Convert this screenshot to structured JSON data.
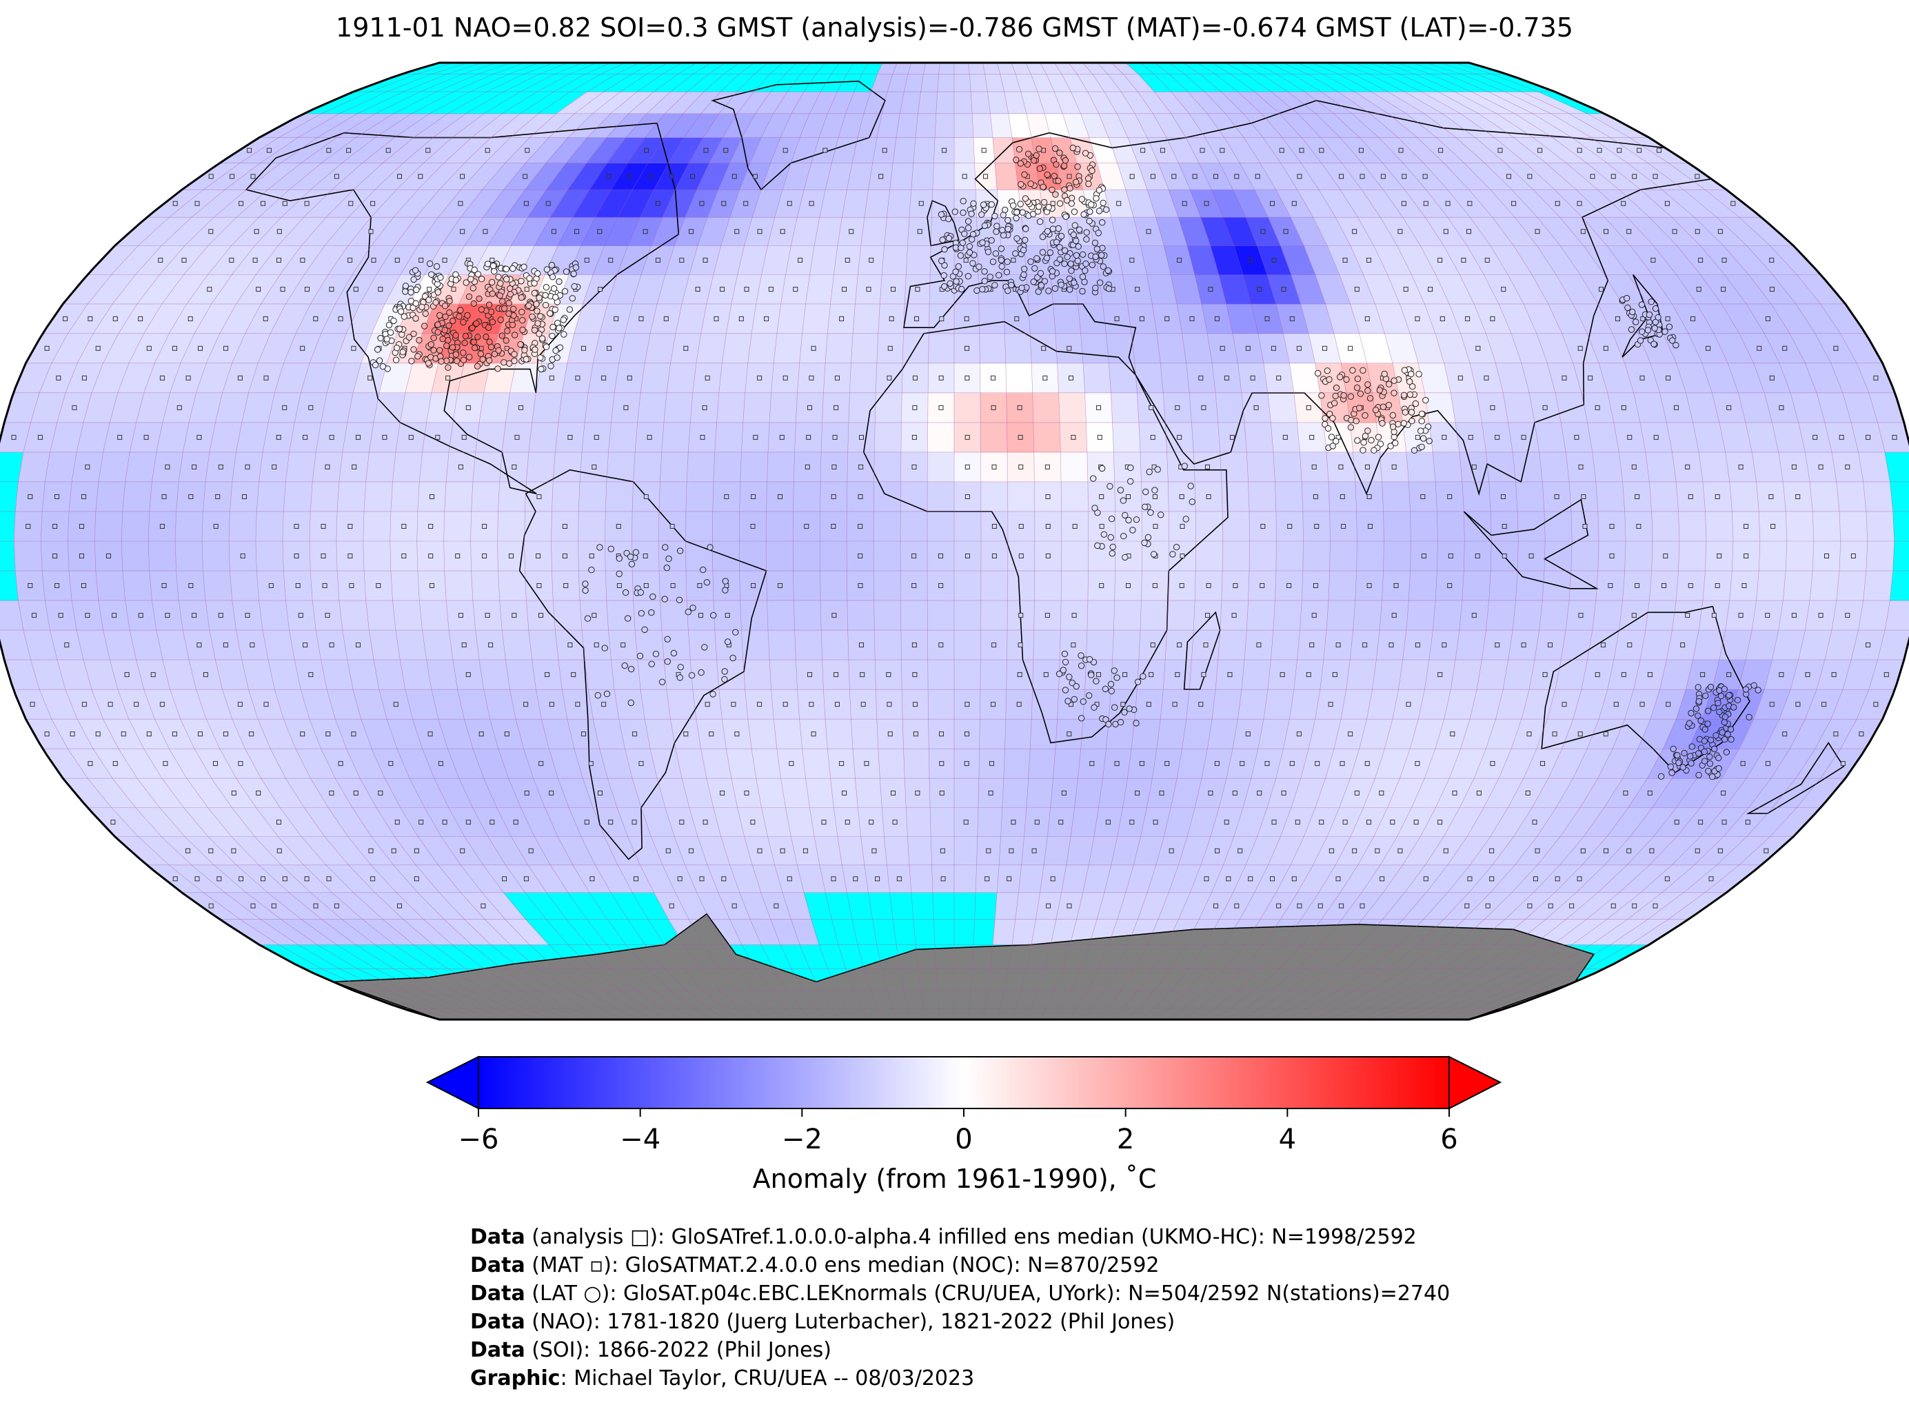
{
  "title": "1911-01 NAO=0.82 SOI=0.3 GMST (analysis)=-0.786 GMST (MAT)=-0.674 GMST (LAT)=-0.735",
  "map": {
    "projection": "Robinson",
    "colors": {
      "no_data": "#00ffff",
      "land_ice": "#808080",
      "coastline": "#000000",
      "gridline": "#a05a9e"
    },
    "anomaly_regions": [
      {
        "name": "North America / Greenland cold",
        "anomaly": -5.5
      },
      {
        "name": "Central USA warm",
        "anomaly": 4.5
      },
      {
        "name": "Scandinavia warm",
        "anomaly": 3.0
      },
      {
        "name": "Central Asia cold",
        "anomaly": -5.5
      },
      {
        "name": "Sahara warm",
        "anomaly": 2.0
      },
      {
        "name": "India warm",
        "anomaly": 2.0
      },
      {
        "name": "Eastern Australia cold",
        "anomaly": -2.5
      }
    ]
  },
  "colorbar": {
    "min": -6,
    "max": 6,
    "low_color": "#0000ff",
    "mid_color": "#ffffff",
    "high_color": "#ff0000",
    "ticks": [
      "−6",
      "−4",
      "−2",
      "0",
      "2",
      "4",
      "6"
    ],
    "label": "Anomaly (from 1961-1990), ˚C"
  },
  "credits": [
    {
      "key": "Data",
      "text": " (analysis □): GloSATref.1.0.0.0-alpha.4 infilled ens median (UKMO-HC): N=1998/2592"
    },
    {
      "key": "Data",
      "text": " (MAT ▫): GloSATMAT.2.4.0.0 ens median (NOC): N=870/2592"
    },
    {
      "key": "Data",
      "text": " (LAT ○): GloSAT.p04c.EBC.LEKnormals (CRU/UEA, UYork): N=504/2592 N(stations)=2740"
    },
    {
      "key": "Data",
      "text": " (NAO): 1781-1820 (Juerg Luterbacher), 1821-2022 (Phil Jones)"
    },
    {
      "key": "Data",
      "text": " (SOI): 1866-2022 (Phil Jones)"
    },
    {
      "key": "Graphic",
      "text": ": Michael Taylor, CRU/UEA -- 08/03/2023"
    }
  ]
}
